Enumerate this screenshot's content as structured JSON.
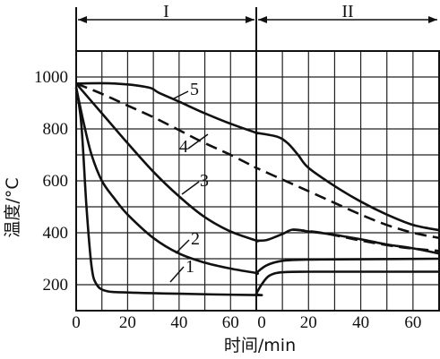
{
  "chart_data": {
    "type": "line",
    "title": "",
    "xlabel": "时间/min",
    "ylabel": "温度/°C",
    "x_ticks_stage1": [
      "0",
      "20",
      "40",
      "60"
    ],
    "x_ticks_stage2": [
      "0",
      "20",
      "40",
      "60"
    ],
    "y_ticks": [
      "200",
      "400",
      "600",
      "800",
      "1000"
    ],
    "ylim": [
      100,
      1100
    ],
    "stage1_xlim": [
      0,
      70
    ],
    "stage2_xlim": [
      0,
      70
    ],
    "stages": [
      "I",
      "II"
    ],
    "grid": true,
    "series": [
      {
        "name": "1",
        "dashed": false,
        "stage1": [
          [
            0,
            960
          ],
          [
            2,
            820
          ],
          [
            4,
            500
          ],
          [
            6,
            270
          ],
          [
            8,
            200
          ],
          [
            12,
            175
          ],
          [
            20,
            170
          ],
          [
            40,
            165
          ],
          [
            70,
            160
          ]
        ],
        "stage2": [
          [
            0,
            165
          ],
          [
            2,
            200
          ],
          [
            5,
            235
          ],
          [
            10,
            248
          ],
          [
            20,
            250
          ],
          [
            40,
            250
          ],
          [
            70,
            250
          ]
        ]
      },
      {
        "name": "2",
        "dashed": false,
        "stage1": [
          [
            0,
            960
          ],
          [
            3,
            820
          ],
          [
            6,
            700
          ],
          [
            10,
            600
          ],
          [
            15,
            530
          ],
          [
            20,
            470
          ],
          [
            30,
            380
          ],
          [
            40,
            320
          ],
          [
            50,
            285
          ],
          [
            60,
            262
          ],
          [
            70,
            245
          ]
        ],
        "stage2": [
          [
            0,
            245
          ],
          [
            4,
            275
          ],
          [
            10,
            292
          ],
          [
            20,
            297
          ],
          [
            40,
            298
          ],
          [
            70,
            300
          ]
        ]
      },
      {
        "name": "3",
        "dashed": false,
        "stage1": [
          [
            0,
            975
          ],
          [
            10,
            860
          ],
          [
            20,
            745
          ],
          [
            30,
            635
          ],
          [
            40,
            540
          ],
          [
            50,
            460
          ],
          [
            60,
            405
          ],
          [
            70,
            370
          ]
        ],
        "stage2": [
          [
            0,
            370
          ],
          [
            4,
            372
          ],
          [
            10,
            395
          ],
          [
            14,
            412
          ],
          [
            20,
            405
          ],
          [
            30,
            392
          ],
          [
            40,
            375
          ],
          [
            50,
            355
          ],
          [
            60,
            340
          ],
          [
            70,
            320
          ]
        ]
      },
      {
        "name": "3",
        "dashed": true,
        "stage1": [],
        "stage2": [
          [
            14,
            412
          ],
          [
            25,
            400
          ],
          [
            40,
            370
          ],
          [
            55,
            345
          ],
          [
            70,
            330
          ]
        ]
      },
      {
        "name": "4",
        "dashed": true,
        "stage1": [
          [
            0,
            975
          ],
          [
            10,
            935
          ],
          [
            20,
            890
          ],
          [
            30,
            845
          ],
          [
            40,
            795
          ],
          [
            50,
            745
          ],
          [
            60,
            700
          ],
          [
            70,
            650
          ]
        ],
        "stage2": [
          [
            0,
            650
          ],
          [
            10,
            605
          ],
          [
            20,
            560
          ],
          [
            30,
            515
          ],
          [
            40,
            470
          ],
          [
            50,
            430
          ],
          [
            60,
            400
          ],
          [
            70,
            380
          ]
        ]
      },
      {
        "name": "5",
        "dashed": false,
        "stage1": [
          [
            0,
            975
          ],
          [
            15,
            975
          ],
          [
            28,
            960
          ],
          [
            32,
            940
          ],
          [
            40,
            905
          ],
          [
            50,
            860
          ],
          [
            60,
            820
          ],
          [
            70,
            785
          ]
        ],
        "stage2": [
          [
            0,
            785
          ],
          [
            8,
            770
          ],
          [
            12,
            745
          ],
          [
            16,
            700
          ],
          [
            20,
            650
          ],
          [
            30,
            580
          ],
          [
            40,
            520
          ],
          [
            50,
            470
          ],
          [
            60,
            430
          ],
          [
            70,
            410
          ]
        ]
      }
    ]
  }
}
